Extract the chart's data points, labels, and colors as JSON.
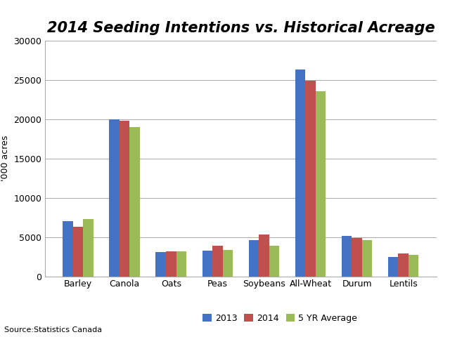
{
  "title": "2014 Seeding Intentions vs. Historical Acreage",
  "categories": [
    "Barley",
    "Canola",
    "Oats",
    "Peas",
    "Soybeans",
    "All-Wheat",
    "Durum",
    "Lentils"
  ],
  "series": {
    "2013": [
      7000,
      20000,
      3100,
      3300,
      4600,
      26300,
      5100,
      2500
    ],
    "2014": [
      6300,
      19800,
      3150,
      3900,
      5300,
      24900,
      4900,
      2900
    ],
    "5 YR Average": [
      7300,
      19000,
      3150,
      3400,
      3900,
      23500,
      4600,
      2700
    ]
  },
  "colors": {
    "2013": "#4472C4",
    "2014": "#C0504D",
    "5 YR Average": "#9BBB59"
  },
  "ylabel": "'000 acres",
  "ylim": [
    0,
    30000
  ],
  "yticks": [
    0,
    5000,
    10000,
    15000,
    20000,
    25000,
    30000
  ],
  "source": "Source:Statistics Canada",
  "background_color": "#FFFFFF",
  "grid_color": "#AAAAAA",
  "title_fontsize": 15,
  "title_fontstyle": "italic",
  "title_fontweight": "bold",
  "bar_width": 0.22,
  "legend_fontsize": 9,
  "axis_fontsize": 9,
  "ylabel_fontsize": 9,
  "source_fontsize": 8
}
